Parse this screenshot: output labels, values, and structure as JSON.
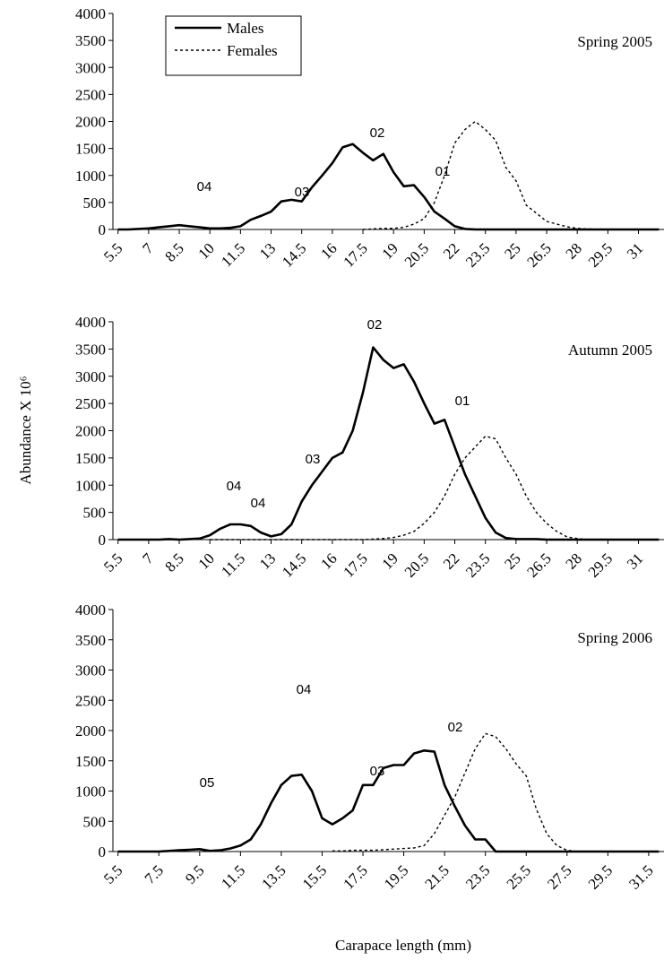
{
  "chart_data": [
    {
      "type": "line",
      "title": "Spring 2005",
      "x": [
        5.5,
        6,
        6.5,
        7,
        7.5,
        8,
        8.5,
        9,
        9.5,
        10,
        10.5,
        11,
        11.5,
        12,
        12.5,
        13,
        13.5,
        14,
        14.5,
        15,
        15.5,
        16,
        16.5,
        17,
        17.5,
        18,
        18.5,
        19,
        19.5,
        20,
        20.5,
        21,
        21.5,
        22,
        22.5,
        23,
        23.5,
        24,
        24.5,
        25,
        25.5,
        26,
        26.5,
        27,
        27.5,
        28,
        28.5,
        29,
        29.5,
        30,
        30.5,
        31,
        31.5,
        32
      ],
      "series": [
        {
          "name": "Males",
          "color": "#000000",
          "dash": "solid",
          "values": [
            0,
            0,
            10,
            20,
            40,
            60,
            80,
            60,
            40,
            20,
            20,
            30,
            60,
            180,
            250,
            330,
            520,
            550,
            520,
            780,
            1000,
            1230,
            1520,
            1580,
            1420,
            1280,
            1400,
            1060,
            800,
            820,
            600,
            330,
            200,
            60,
            10,
            0,
            0,
            0,
            0,
            0,
            0,
            0,
            0,
            0,
            0,
            0,
            0,
            0,
            0,
            0,
            0,
            0,
            0,
            0
          ]
        },
        {
          "name": "Females",
          "color": "#000000",
          "dash": "dotted",
          "values": [
            null,
            null,
            null,
            null,
            null,
            null,
            null,
            null,
            null,
            null,
            null,
            null,
            null,
            null,
            null,
            null,
            null,
            null,
            null,
            null,
            null,
            null,
            null,
            null,
            0,
            10,
            20,
            20,
            40,
            100,
            200,
            500,
            1000,
            1600,
            1850,
            2000,
            1850,
            1650,
            1150,
            900,
            450,
            300,
            150,
            100,
            50,
            20,
            10,
            0,
            0,
            0,
            0,
            0,
            0,
            0
          ]
        }
      ],
      "annotations": [
        "04",
        "03",
        "02",
        "01"
      ],
      "legend": "upper left",
      "xlim": [
        5.25,
        32.25
      ],
      "xticks": [
        5.5,
        7,
        8.5,
        10,
        11.5,
        13,
        14.5,
        16,
        17.5,
        19,
        20.5,
        22,
        23.5,
        25,
        26.5,
        28,
        29.5,
        31
      ],
      "ylim": [
        0,
        4000
      ],
      "yticks": [
        0,
        500,
        1000,
        1500,
        2000,
        2500,
        3000,
        3500,
        4000
      ]
    },
    {
      "type": "line",
      "title": "Autumn 2005",
      "ylabel": "Abundance X 10⁶",
      "x": [
        5.5,
        6,
        6.5,
        7,
        7.5,
        8,
        8.5,
        9,
        9.5,
        10,
        10.5,
        11,
        11.5,
        12,
        12.5,
        13,
        13.5,
        14,
        14.5,
        15,
        15.5,
        16,
        16.5,
        17,
        17.5,
        18,
        18.5,
        19,
        19.5,
        20,
        20.5,
        21,
        21.5,
        22,
        22.5,
        23,
        23.5,
        24,
        24.5,
        25,
        25.5,
        26,
        26.5,
        27,
        27.5,
        28,
        28.5,
        29,
        29.5,
        30,
        30.5,
        31,
        31.5,
        32
      ],
      "series": [
        {
          "color": "#000000",
          "dash": "solid",
          "values": [
            0,
            0,
            0,
            0,
            0,
            10,
            0,
            10,
            20,
            80,
            200,
            280,
            280,
            250,
            130,
            60,
            100,
            280,
            700,
            1000,
            1250,
            1500,
            1600,
            2000,
            2700,
            3530,
            3300,
            3150,
            3220,
            2900,
            2500,
            2130,
            2200,
            1700,
            1200,
            800,
            400,
            130,
            30,
            10,
            10,
            10,
            0,
            0,
            0,
            0,
            0,
            0,
            0,
            0,
            0,
            0,
            0,
            0
          ]
        },
        {
          "color": "#000000",
          "dash": "dotted",
          "values": [
            null,
            null,
            null,
            null,
            null,
            null,
            null,
            null,
            null,
            0,
            0,
            0,
            0,
            0,
            0,
            0,
            0,
            0,
            0,
            0,
            0,
            0,
            0,
            0,
            0,
            10,
            20,
            40,
            80,
            150,
            300,
            500,
            800,
            1200,
            1500,
            1700,
            1900,
            1850,
            1500,
            1200,
            800,
            500,
            300,
            150,
            50,
            20,
            0,
            0,
            0,
            0,
            0,
            0,
            0,
            0
          ]
        }
      ],
      "annotations": [
        "02",
        "01",
        "03",
        "04",
        "04"
      ],
      "xlim": [
        5.25,
        32.25
      ],
      "xticks": [
        5.5,
        7,
        8.5,
        10,
        11.5,
        13,
        14.5,
        16,
        17.5,
        19,
        20.5,
        22,
        23.5,
        25,
        26.5,
        28,
        29.5,
        31
      ],
      "ylim": [
        0,
        4000
      ],
      "yticks": [
        0,
        500,
        1000,
        1500,
        2000,
        2500,
        3000,
        3500,
        4000
      ]
    },
    {
      "type": "line",
      "title": "Spring 2006",
      "xlabel": "Carapace length (mm)",
      "x": [
        5.5,
        6,
        6.5,
        7,
        7.5,
        8,
        8.5,
        9,
        9.5,
        10,
        10.5,
        11,
        11.5,
        12,
        12.5,
        13,
        13.5,
        14,
        14.5,
        15,
        15.5,
        16,
        16.5,
        17,
        17.5,
        18,
        18.5,
        19,
        19.5,
        20,
        20.5,
        21,
        21.5,
        22,
        22.5,
        23,
        23.5,
        24,
        24.5,
        25,
        25.5,
        26,
        26.5,
        27,
        27.5,
        28,
        28.5,
        29,
        29.5,
        30,
        30.5,
        31,
        31.5,
        32
      ],
      "series": [
        {
          "color": "#000000",
          "dash": "solid",
          "values": [
            0,
            0,
            0,
            0,
            0,
            10,
            20,
            30,
            40,
            10,
            20,
            50,
            100,
            200,
            450,
            800,
            1100,
            1250,
            1270,
            1000,
            550,
            450,
            550,
            680,
            1100,
            1100,
            1380,
            1430,
            1430,
            1620,
            1670,
            1650,
            1100,
            750,
            430,
            200,
            200,
            0,
            0,
            0,
            0,
            0,
            0,
            0,
            0,
            0,
            0,
            0,
            0,
            0,
            0,
            0,
            0,
            0
          ]
        },
        {
          "color": "#000000",
          "dash": "dotted",
          "values": [
            null,
            null,
            null,
            null,
            null,
            null,
            null,
            null,
            null,
            null,
            null,
            null,
            null,
            null,
            null,
            null,
            null,
            null,
            null,
            null,
            null,
            10,
            10,
            20,
            20,
            20,
            30,
            40,
            50,
            60,
            100,
            300,
            600,
            900,
            1300,
            1700,
            1950,
            1900,
            1700,
            1450,
            1250,
            700,
            300,
            100,
            20,
            0,
            0,
            0,
            0,
            0,
            0,
            0,
            0,
            0
          ]
        }
      ],
      "annotations": [
        "04",
        "03",
        "02",
        "05"
      ],
      "xlim": [
        5.25,
        32.25
      ],
      "xticks": [
        5.5,
        7.5,
        9.5,
        11.5,
        13.5,
        15.5,
        17.5,
        19.5,
        21.5,
        23.5,
        25.5,
        27.5,
        29.5,
        31.5
      ],
      "ylim": [
        0,
        4000
      ],
      "yticks": [
        0,
        500,
        1000,
        1500,
        2000,
        2500,
        3000,
        3500,
        4000
      ]
    }
  ]
}
